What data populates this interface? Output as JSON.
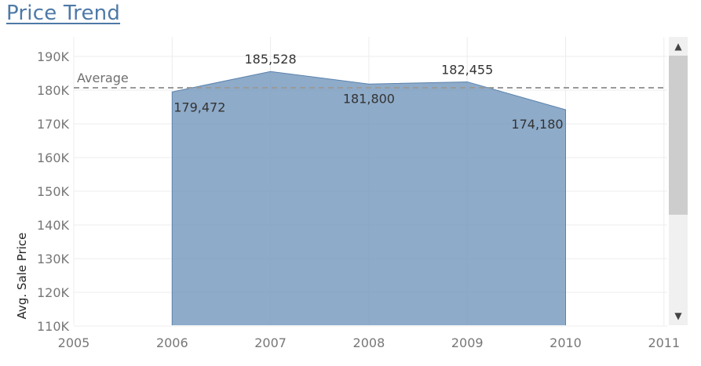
{
  "title": "Price Trend",
  "chart_data": {
    "type": "area",
    "ylabel": "Avg. Sale Price",
    "x_ticks": [
      "2005",
      "2006",
      "2007",
      "2008",
      "2009",
      "2010",
      "2011"
    ],
    "y_ticks": [
      "110K",
      "120K",
      "130K",
      "140K",
      "150K",
      "160K",
      "170K",
      "180K",
      "190K"
    ],
    "ylim": [
      110000,
      192000
    ],
    "xlim": [
      2005,
      2011
    ],
    "x": [
      2006,
      2007,
      2008,
      2009,
      2010
    ],
    "values": [
      179472,
      185528,
      181800,
      182455,
      174180
    ],
    "data_labels": [
      "179,472",
      "185,528",
      "181,800",
      "182,455",
      "174,180"
    ],
    "reference_line": {
      "label": "Average",
      "value": 180687
    },
    "fill_color": "#7a9cc0",
    "line_color": "#5b82ad",
    "grid": true
  },
  "scrollbar": {
    "up_icon": "▲",
    "down_icon": "▼"
  }
}
